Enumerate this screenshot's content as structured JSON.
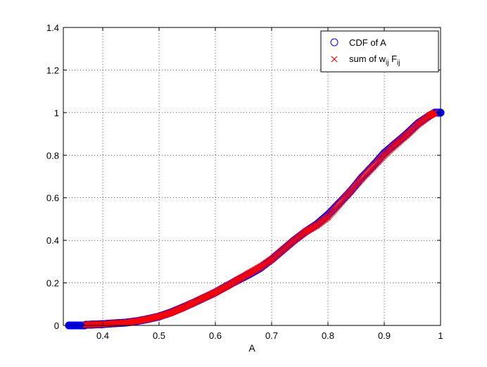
{
  "chart_data": {
    "type": "scatter",
    "title": "",
    "xlabel": "A",
    "ylabel": "",
    "xlim": [
      0.33,
      1.0
    ],
    "ylim": [
      0,
      1.4
    ],
    "xticks": [
      "0.4",
      "0.5",
      "0.6",
      "0.7",
      "0.8",
      "0.9",
      "1"
    ],
    "xtick_values": [
      0.4,
      0.5,
      0.6,
      0.7,
      0.8,
      0.9,
      1.0
    ],
    "yticks": [
      "0",
      "0.2",
      "0.4",
      "0.6",
      "0.8",
      "1",
      "1.2",
      "1.4"
    ],
    "ytick_values": [
      0,
      0.2,
      0.4,
      0.6,
      0.8,
      1.0,
      1.2,
      1.4
    ],
    "grid": true,
    "grid_style": "dotted",
    "legend_position": "top-right",
    "series": [
      {
        "name": "CDF of A",
        "legend_text": "CDF of A",
        "marker": "circle",
        "color": "#0000ff",
        "x": [
          0.34,
          0.35,
          0.354,
          0.367,
          0.37,
          0.38,
          0.39,
          0.4,
          0.42,
          0.44,
          0.46,
          0.48,
          0.5,
          0.52,
          0.54,
          0.56,
          0.58,
          0.6,
          0.62,
          0.64,
          0.66,
          0.68,
          0.7,
          0.72,
          0.74,
          0.76,
          0.78,
          0.8,
          0.82,
          0.84,
          0.86,
          0.88,
          0.9,
          0.92,
          0.94,
          0.96,
          0.98,
          0.99,
          1.0
        ],
        "y": [
          0.0,
          0.0,
          0.0,
          0.0,
          0.003,
          0.004,
          0.005,
          0.006,
          0.01,
          0.013,
          0.02,
          0.03,
          0.042,
          0.06,
          0.082,
          0.105,
          0.13,
          0.155,
          0.185,
          0.213,
          0.24,
          0.27,
          0.31,
          0.355,
          0.4,
          0.44,
          0.475,
          0.52,
          0.575,
          0.63,
          0.695,
          0.75,
          0.81,
          0.855,
          0.9,
          0.95,
          0.985,
          1.0,
          1.0
        ]
      },
      {
        "name": "sum of w_ij F_ij",
        "legend_text": "sum of w",
        "legend_sub1": "ij",
        "legend_mid": " F",
        "legend_sub2": "ij",
        "marker": "x",
        "color": "#ff0000",
        "x": [
          0.37,
          0.38,
          0.39,
          0.4,
          0.42,
          0.44,
          0.46,
          0.48,
          0.5,
          0.52,
          0.54,
          0.56,
          0.58,
          0.6,
          0.62,
          0.64,
          0.66,
          0.68,
          0.7,
          0.72,
          0.74,
          0.76,
          0.78,
          0.8,
          0.82,
          0.84,
          0.86,
          0.88,
          0.9,
          0.92,
          0.94,
          0.96,
          0.98,
          0.99
        ],
        "y": [
          0.003,
          0.004,
          0.005,
          0.006,
          0.01,
          0.013,
          0.02,
          0.03,
          0.042,
          0.058,
          0.08,
          0.105,
          0.13,
          0.155,
          0.183,
          0.215,
          0.245,
          0.275,
          0.31,
          0.355,
          0.4,
          0.44,
          0.47,
          0.51,
          0.57,
          0.63,
          0.69,
          0.745,
          0.8,
          0.85,
          0.895,
          0.945,
          0.985,
          1.0
        ]
      }
    ]
  }
}
